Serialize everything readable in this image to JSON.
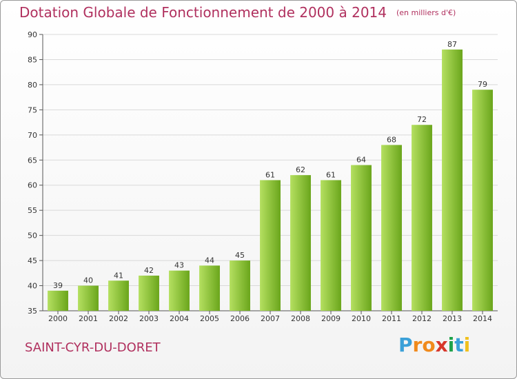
{
  "header": {
    "title": "Dotation Globale de Fonctionnement de 2000 à 2014",
    "unit": "(en milliers d'€)"
  },
  "footer": {
    "commune": "SAINT-CYR-DU-DORET",
    "logo_letters": [
      "P",
      "r",
      "o",
      "x",
      "i",
      "t",
      "i"
    ],
    "logo_colors": [
      "#3aa0d8",
      "#f08a1c",
      "#f08a1c",
      "#d8362a",
      "#1fa24a",
      "#3aa0d8",
      "#f0c01c"
    ]
  },
  "colors": {
    "bar_light": "#b5e061",
    "bar_dark": "#6aa51b",
    "title": "#b0305e",
    "grid": "#d9d9d9"
  },
  "chart_data": {
    "type": "bar",
    "title": "Dotation Globale de Fonctionnement de 2000 à 2014",
    "subtitle": "(en milliers d'€)",
    "categories": [
      "2000",
      "2001",
      "2002",
      "2003",
      "2004",
      "2005",
      "2006",
      "2007",
      "2008",
      "2009",
      "2010",
      "2011",
      "2012",
      "2013",
      "2014"
    ],
    "values": [
      39,
      40,
      41,
      42,
      43,
      44,
      45,
      61,
      62,
      61,
      64,
      68,
      72,
      87,
      79
    ],
    "ylim": [
      35,
      90
    ],
    "yticks": [
      35,
      40,
      45,
      50,
      55,
      60,
      65,
      70,
      75,
      80,
      85,
      90
    ],
    "grid": true,
    "data_labels": true
  }
}
